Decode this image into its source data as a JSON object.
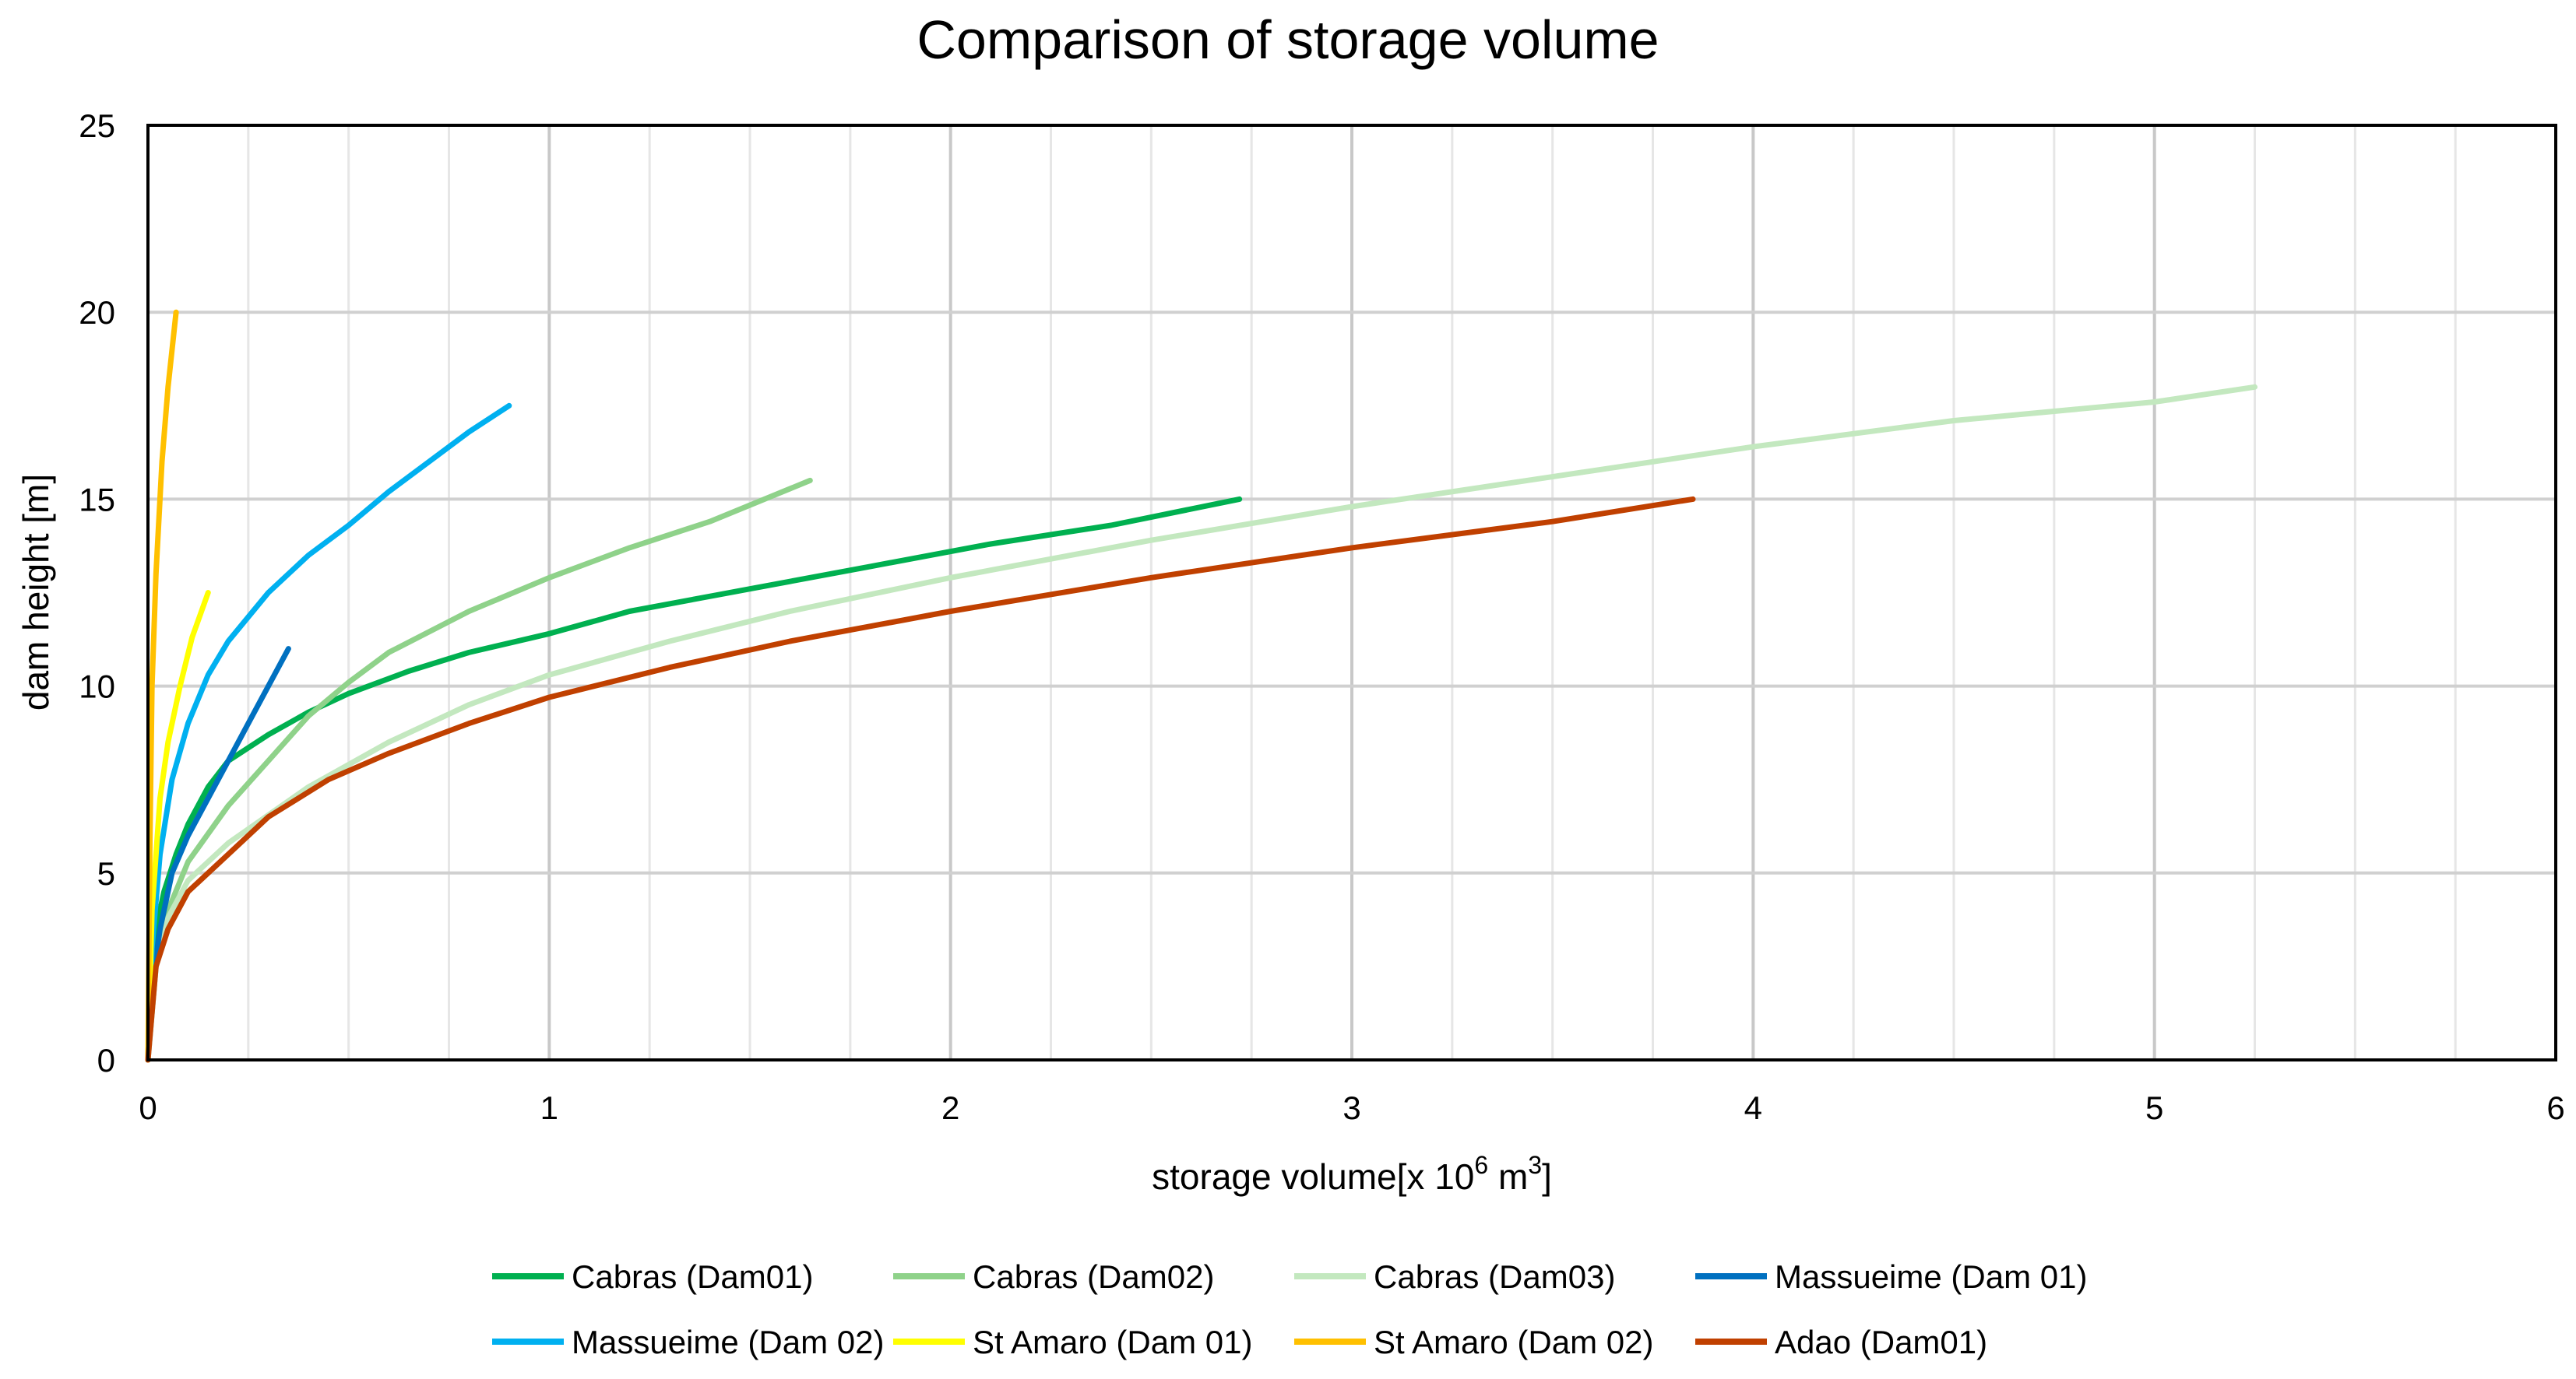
{
  "chart_data": {
    "type": "line",
    "title": "Comparison of storage volume",
    "xlabel": {
      "text": "storage volume[x 10",
      "exp": "6",
      "unit": " m",
      "unit_exp": "3",
      "close": "]"
    },
    "ylabel": "dam height [m]",
    "xlim": [
      0,
      6
    ],
    "ylim": [
      0,
      25
    ],
    "x_ticks": [
      "0",
      "1",
      "2",
      "3",
      "4",
      "5",
      "6"
    ],
    "y_ticks": [
      "0",
      "5",
      "10",
      "15",
      "20",
      "25"
    ],
    "x_minor_step": 0.25,
    "y_minor_step": 5,
    "grid": true,
    "legend_position": "bottom",
    "series": [
      {
        "name": "Cabras (Dam01)",
        "color": "#00b050",
        "points": [
          [
            0,
            0
          ],
          [
            0.01,
            3
          ],
          [
            0.04,
            4.5
          ],
          [
            0.07,
            5.5
          ],
          [
            0.1,
            6.3
          ],
          [
            0.15,
            7.3
          ],
          [
            0.2,
            8
          ],
          [
            0.3,
            8.7
          ],
          [
            0.4,
            9.3
          ],
          [
            0.5,
            9.8
          ],
          [
            0.65,
            10.4
          ],
          [
            0.8,
            10.9
          ],
          [
            1,
            11.4
          ],
          [
            1.2,
            12
          ],
          [
            1.5,
            12.6
          ],
          [
            1.8,
            13.2
          ],
          [
            2.1,
            13.8
          ],
          [
            2.4,
            14.3
          ],
          [
            2.72,
            15
          ]
        ]
      },
      {
        "name": "Cabras (Dam02)",
        "color": "#8fd28a",
        "points": [
          [
            0,
            0
          ],
          [
            0.02,
            2.5
          ],
          [
            0.05,
            4
          ],
          [
            0.1,
            5.3
          ],
          [
            0.2,
            6.8
          ],
          [
            0.3,
            8
          ],
          [
            0.4,
            9.2
          ],
          [
            0.5,
            10.1
          ],
          [
            0.6,
            10.9
          ],
          [
            0.8,
            12
          ],
          [
            1,
            12.9
          ],
          [
            1.2,
            13.7
          ],
          [
            1.4,
            14.4
          ],
          [
            1.65,
            15.5
          ]
        ]
      },
      {
        "name": "Cabras (Dam03)",
        "color": "#c3e8bf",
        "points": [
          [
            0,
            0
          ],
          [
            0.02,
            2.5
          ],
          [
            0.05,
            3.8
          ],
          [
            0.1,
            4.8
          ],
          [
            0.2,
            5.8
          ],
          [
            0.4,
            7.3
          ],
          [
            0.6,
            8.5
          ],
          [
            0.8,
            9.5
          ],
          [
            1,
            10.3
          ],
          [
            1.3,
            11.2
          ],
          [
            1.6,
            12
          ],
          [
            2,
            12.9
          ],
          [
            2.5,
            13.9
          ],
          [
            3,
            14.8
          ],
          [
            3.5,
            15.6
          ],
          [
            4,
            16.4
          ],
          [
            4.5,
            17.1
          ],
          [
            5,
            17.6
          ],
          [
            5.25,
            18
          ]
        ]
      },
      {
        "name": "Massueime (Dam 01)",
        "color": "#0070c0",
        "points": [
          [
            0,
            0
          ],
          [
            0.01,
            2
          ],
          [
            0.03,
            3.5
          ],
          [
            0.06,
            5
          ],
          [
            0.1,
            6
          ],
          [
            0.15,
            7
          ],
          [
            0.2,
            8
          ],
          [
            0.25,
            9
          ],
          [
            0.3,
            10
          ],
          [
            0.35,
            11
          ]
        ]
      },
      {
        "name": "Massueime (Dam 02)",
        "color": "#00b0f0",
        "points": [
          [
            0,
            0
          ],
          [
            0.01,
            3
          ],
          [
            0.03,
            5.5
          ],
          [
            0.06,
            7.5
          ],
          [
            0.1,
            9
          ],
          [
            0.15,
            10.3
          ],
          [
            0.2,
            11.2
          ],
          [
            0.3,
            12.5
          ],
          [
            0.4,
            13.5
          ],
          [
            0.5,
            14.3
          ],
          [
            0.6,
            15.2
          ],
          [
            0.7,
            16
          ],
          [
            0.8,
            16.8
          ],
          [
            0.9,
            17.5
          ]
        ]
      },
      {
        "name": "St Amaro (Dam 01)",
        "color": "#ffff00",
        "points": [
          [
            0,
            0
          ],
          [
            0.01,
            4
          ],
          [
            0.03,
            7
          ],
          [
            0.05,
            8.5
          ],
          [
            0.08,
            10
          ],
          [
            0.11,
            11.3
          ],
          [
            0.15,
            12.5
          ]
        ]
      },
      {
        "name": "St Amaro (Dam 02)",
        "color": "#ffc000",
        "points": [
          [
            0,
            0
          ],
          [
            0.005,
            6
          ],
          [
            0.01,
            10
          ],
          [
            0.02,
            13
          ],
          [
            0.035,
            16
          ],
          [
            0.05,
            18
          ],
          [
            0.07,
            20
          ]
        ]
      },
      {
        "name": "Adao (Dam01)",
        "color": "#c04000",
        "points": [
          [
            0,
            0
          ],
          [
            0.02,
            2.5
          ],
          [
            0.05,
            3.5
          ],
          [
            0.1,
            4.5
          ],
          [
            0.2,
            5.5
          ],
          [
            0.3,
            6.5
          ],
          [
            0.45,
            7.5
          ],
          [
            0.6,
            8.2
          ],
          [
            0.8,
            9
          ],
          [
            1,
            9.7
          ],
          [
            1.3,
            10.5
          ],
          [
            1.6,
            11.2
          ],
          [
            2,
            12
          ],
          [
            2.5,
            12.9
          ],
          [
            3,
            13.7
          ],
          [
            3.5,
            14.4
          ],
          [
            3.85,
            15
          ]
        ]
      }
    ]
  }
}
